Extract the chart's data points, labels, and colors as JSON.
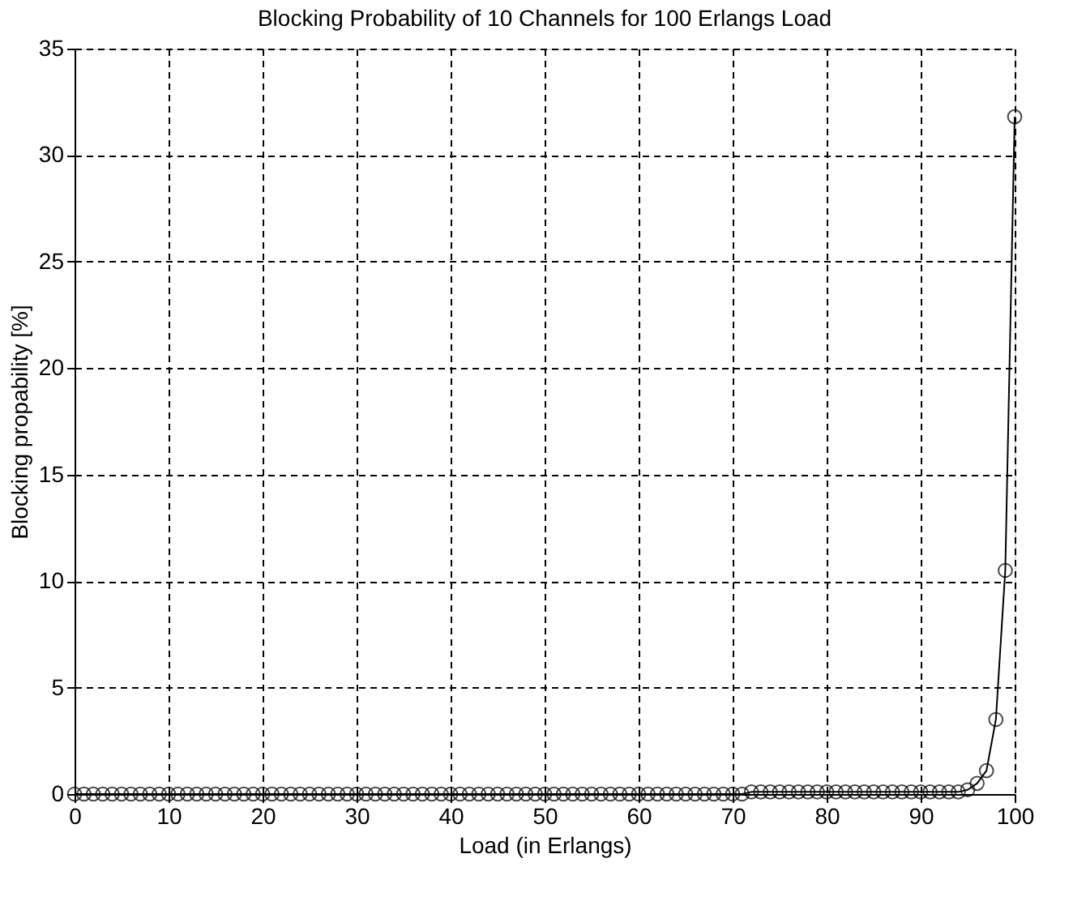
{
  "chart_data": {
    "type": "line",
    "title": "Blocking Probability of 10 Channels for 100 Erlangs Load",
    "xlabel": "Load (in Erlangs)",
    "ylabel": "Blocking propability [%]",
    "x": [
      0,
      1,
      2,
      3,
      4,
      5,
      6,
      7,
      8,
      9,
      10,
      11,
      12,
      13,
      14,
      15,
      16,
      17,
      18,
      19,
      20,
      21,
      22,
      23,
      24,
      25,
      26,
      27,
      28,
      29,
      30,
      31,
      32,
      33,
      34,
      35,
      36,
      37,
      38,
      39,
      40,
      41,
      42,
      43,
      44,
      45,
      46,
      47,
      48,
      49,
      50,
      51,
      52,
      53,
      54,
      55,
      56,
      57,
      58,
      59,
      60,
      61,
      62,
      63,
      64,
      65,
      66,
      67,
      68,
      69,
      70,
      71,
      72,
      73,
      74,
      75,
      76,
      77,
      78,
      79,
      80,
      81,
      82,
      83,
      84,
      85,
      86,
      87,
      88,
      89,
      90,
      91,
      92,
      93,
      94,
      95,
      96,
      97,
      98,
      99,
      100
    ],
    "series": [
      {
        "color": "#000000",
        "values": [
          0,
          0,
          0,
          0,
          0,
          0,
          0,
          0,
          0,
          0,
          0,
          0,
          0,
          0,
          0,
          0,
          0,
          0,
          0,
          0,
          0,
          0,
          0,
          0,
          0,
          0,
          0,
          0,
          0,
          0,
          0,
          0,
          0,
          0,
          0,
          0,
          0,
          0,
          0,
          0,
          0,
          0,
          0,
          0,
          0,
          0,
          0,
          0,
          0,
          0,
          0,
          0,
          0,
          0,
          0,
          0,
          0,
          0,
          0,
          0,
          0,
          0,
          0,
          0,
          0,
          0,
          0,
          0,
          0,
          0,
          0,
          0,
          0.1,
          0.1,
          0.1,
          0.1,
          0.1,
          0.1,
          0.1,
          0.1,
          0.1,
          0.1,
          0.1,
          0.1,
          0.1,
          0.1,
          0.1,
          0.1,
          0.1,
          0.1,
          0.1,
          0.1,
          0.1,
          0.1,
          0.1,
          0.2,
          0.5,
          1.1,
          3.5,
          10.5,
          31.8
        ]
      }
    ],
    "xlim": [
      0,
      100
    ],
    "xticks": [
      0,
      10,
      20,
      30,
      40,
      50,
      60,
      70,
      80,
      90,
      100
    ],
    "ylim": [
      0,
      35
    ],
    "yticks": [
      0,
      5,
      10,
      15,
      20,
      25,
      30,
      35
    ],
    "grid": true,
    "marker": "circle",
    "line_style": "solid"
  }
}
